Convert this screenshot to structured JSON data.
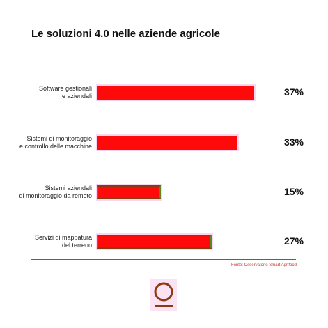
{
  "title": "Le soluzioni 4.0 nelle aziende agricole",
  "source": "Fonte: Osservatorio Smart Agrifood",
  "colors": {
    "bar": "#ff0a0a",
    "highlight": "#f9d7f0",
    "accent": "#c0392b"
  },
  "chart_data": {
    "type": "bar",
    "orientation": "horizontal",
    "title": "Le soluzioni 4.0 nelle aziende agricole",
    "categories": [
      "Software gestionali e aziendali",
      "Sistemi di monitoraggio e controllo delle macchine",
      "Sistemi aziendali di monitoraggio da remoto",
      "Servizi di mappatura del terreno"
    ],
    "category_lines": [
      [
        "Software gestionali",
        "e aziendali"
      ],
      [
        "Sistemi di monitoraggio",
        "e controllo delle macchine"
      ],
      [
        "Sistemi aziendali",
        "di monitoraggio da remoto"
      ],
      [
        "Servizi di mappatura",
        "del terreno"
      ]
    ],
    "values": [
      37,
      33,
      15,
      27
    ],
    "value_labels": [
      "37%",
      "33%",
      "15%",
      "27%"
    ],
    "xlim": [
      0,
      37
    ],
    "grid": false,
    "legend": "none"
  }
}
